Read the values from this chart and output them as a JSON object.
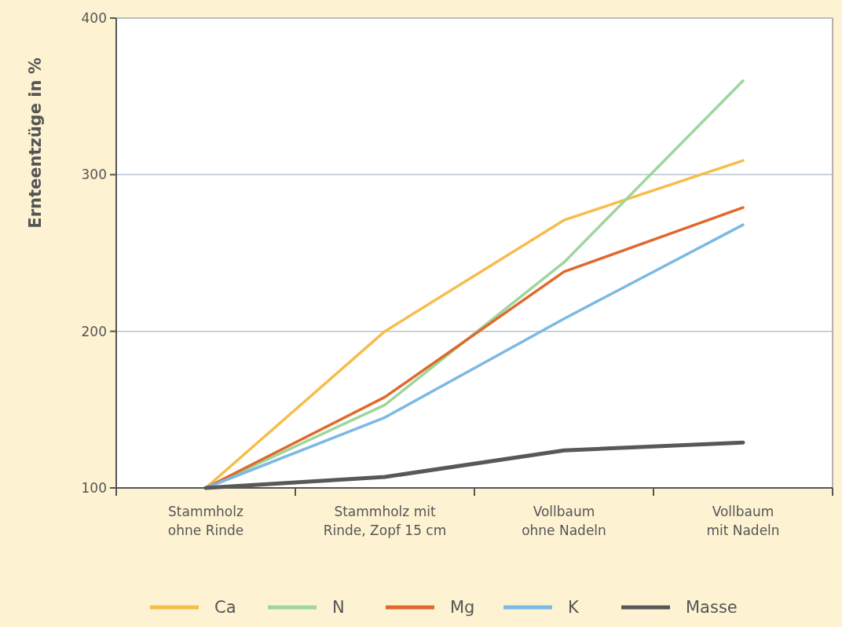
{
  "chart_data": {
    "type": "line",
    "ylabel": "Ernteentzüge in %",
    "categories": [
      "Stammholz\nohne Rinde",
      "Stammholz mit\nRinde, Zopf 15 cm",
      "Vollbaum\nohne Nadeln",
      "Vollbaum\nmit Nadeln"
    ],
    "series": [
      {
        "name": "Ca",
        "color": "#f6bd4a",
        "values": [
          100,
          200,
          271,
          309
        ]
      },
      {
        "name": "N",
        "color": "#9ed69b",
        "values": [
          100,
          153,
          244,
          360
        ]
      },
      {
        "name": "Mg",
        "color": "#e0692c",
        "values": [
          100,
          158,
          238,
          279
        ]
      },
      {
        "name": "K",
        "color": "#7cb9e3",
        "values": [
          100,
          145,
          208,
          268
        ]
      },
      {
        "name": "Masse",
        "color": "#58585a",
        "values": [
          100,
          107,
          124,
          129
        ]
      }
    ],
    "ylim": [
      100,
      400
    ],
    "yticks": [
      100,
      200,
      300,
      400
    ],
    "grid": "y",
    "legend": "bottom",
    "marker": "none",
    "line_style": "solid"
  }
}
